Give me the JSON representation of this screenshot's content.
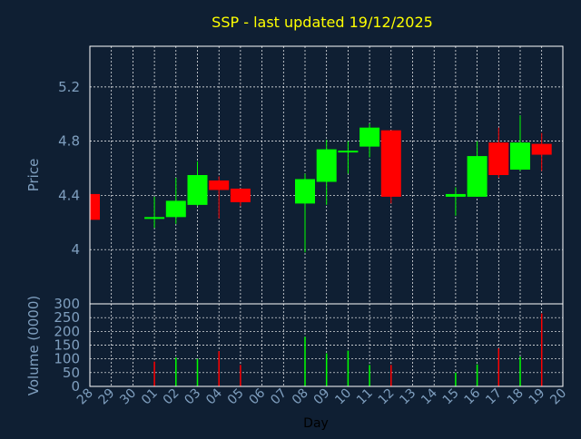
{
  "colors": {
    "background": "#0f1f33",
    "title": "#ffff00",
    "axis_text": "#7f9fbf",
    "grid": "#ffffff",
    "frame": "#ffffff",
    "up": "#00ff00",
    "down": "#ff0000"
  },
  "chart_data": [
    {
      "type": "candlestick",
      "title": "SSP - last updated 19/12/2025",
      "ylabel": "Price",
      "ylim": [
        3.6,
        5.5
      ],
      "yticks": [
        "4",
        "4.4",
        "4.8",
        "5.2"
      ],
      "ytick_values": [
        4.0,
        4.4,
        4.8,
        5.2
      ],
      "grid": true,
      "x": [
        "28",
        "29",
        "30",
        "01",
        "02",
        "03",
        "04",
        "05",
        "06",
        "07",
        "08",
        "09",
        "10",
        "11",
        "12",
        "13",
        "14",
        "15",
        "16",
        "17",
        "18",
        "19",
        "20"
      ],
      "candles": [
        {
          "day": "28",
          "open": 4.41,
          "close": 4.22,
          "high": 4.42,
          "low": 4.22
        },
        {
          "day": "01",
          "open": 4.24,
          "close": 4.24,
          "high": 4.39,
          "low": 4.16
        },
        {
          "day": "02",
          "open": 4.24,
          "close": 4.36,
          "high": 4.53,
          "low": 4.19
        },
        {
          "day": "03",
          "open": 4.33,
          "close": 4.55,
          "high": 4.65,
          "low": 4.32
        },
        {
          "day": "04",
          "open": 4.51,
          "close": 4.44,
          "high": 4.54,
          "low": 4.23
        },
        {
          "day": "05",
          "open": 4.45,
          "close": 4.35,
          "high": 4.45,
          "low": 4.32
        },
        {
          "day": "08",
          "open": 4.34,
          "close": 4.52,
          "high": 4.56,
          "low": 3.98
        },
        {
          "day": "09",
          "open": 4.5,
          "close": 4.74,
          "high": 4.81,
          "low": 4.33
        },
        {
          "day": "10",
          "open": 4.72,
          "close": 4.73,
          "high": 4.8,
          "low": 4.56
        },
        {
          "day": "11",
          "open": 4.76,
          "close": 4.9,
          "high": 4.93,
          "low": 4.68
        },
        {
          "day": "12",
          "open": 4.88,
          "close": 4.39,
          "high": 4.88,
          "low": 4.34
        },
        {
          "day": "15",
          "open": 4.39,
          "close": 4.41,
          "high": 4.46,
          "low": 4.25
        },
        {
          "day": "16",
          "open": 4.39,
          "close": 4.69,
          "high": 4.8,
          "low": 4.39
        },
        {
          "day": "17",
          "open": 4.79,
          "close": 4.55,
          "high": 4.9,
          "low": 4.53
        },
        {
          "day": "18",
          "open": 4.59,
          "close": 4.79,
          "high": 4.99,
          "low": 4.58
        },
        {
          "day": "19",
          "open": 4.78,
          "close": 4.7,
          "high": 4.86,
          "low": 4.58
        }
      ]
    },
    {
      "type": "bar",
      "ylabel": "Volume (0000)",
      "xlabel": "Day",
      "ylim": [
        0,
        300
      ],
      "yticks": [
        "0",
        "50",
        "100",
        "150",
        "200",
        "250",
        "300"
      ],
      "ytick_values": [
        0,
        50,
        100,
        150,
        200,
        250,
        300
      ],
      "grid": true,
      "x": [
        "28",
        "29",
        "30",
        "01",
        "02",
        "03",
        "04",
        "05",
        "06",
        "07",
        "08",
        "09",
        "10",
        "11",
        "12",
        "13",
        "14",
        "15",
        "16",
        "17",
        "18",
        "19",
        "20"
      ],
      "bars": [
        {
          "day": "01",
          "value": 90,
          "color": "down"
        },
        {
          "day": "02",
          "value": 105,
          "color": "up"
        },
        {
          "day": "03",
          "value": 100,
          "color": "up"
        },
        {
          "day": "04",
          "value": 128,
          "color": "down"
        },
        {
          "day": "05",
          "value": 78,
          "color": "down"
        },
        {
          "day": "08",
          "value": 180,
          "color": "up"
        },
        {
          "day": "09",
          "value": 120,
          "color": "up"
        },
        {
          "day": "10",
          "value": 130,
          "color": "up"
        },
        {
          "day": "11",
          "value": 78,
          "color": "up"
        },
        {
          "day": "12",
          "value": 78,
          "color": "down"
        },
        {
          "day": "15",
          "value": 50,
          "color": "up"
        },
        {
          "day": "16",
          "value": 80,
          "color": "up"
        },
        {
          "day": "17",
          "value": 138,
          "color": "down"
        },
        {
          "day": "18",
          "value": 108,
          "color": "up"
        },
        {
          "day": "19",
          "value": 265,
          "color": "down"
        }
      ]
    }
  ]
}
